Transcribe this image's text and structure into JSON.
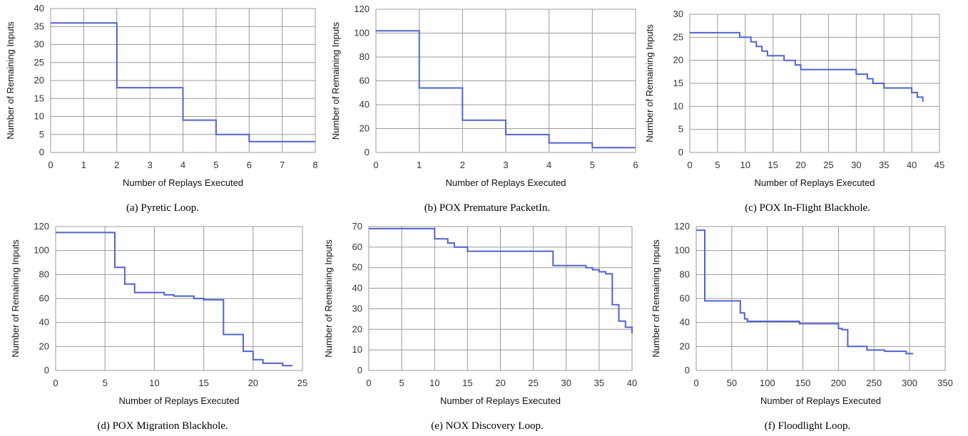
{
  "figure": {
    "series_color": "#5262d0",
    "grid_color": "#9a9a9a"
  },
  "chart_data": [
    {
      "type": "line",
      "step": true,
      "caption": "(a)  Pyretic Loop.",
      "xlabel": "Number of Replays Executed",
      "ylabel": "Number of Remaining Inputs",
      "xlim": [
        0,
        8
      ],
      "ylim": [
        0,
        40
      ],
      "xticks": [
        0,
        1,
        2,
        3,
        4,
        5,
        6,
        7,
        8
      ],
      "yticks": [
        0,
        5,
        10,
        15,
        20,
        25,
        30,
        35,
        40
      ],
      "grid": true,
      "x": [
        0,
        2,
        2,
        4,
        4,
        5,
        5,
        6,
        6,
        8
      ],
      "y": [
        36,
        36,
        18,
        18,
        9,
        9,
        5,
        5,
        3,
        3
      ]
    },
    {
      "type": "line",
      "step": true,
      "caption": "(b)  POX Premature PacketIn.",
      "xlabel": "Number of Replays Executed",
      "ylabel": "Number of Remaining Inputs",
      "xlim": [
        0,
        6
      ],
      "ylim": [
        0,
        120
      ],
      "xticks": [
        0,
        1,
        2,
        3,
        4,
        5,
        6
      ],
      "yticks": [
        0,
        20,
        40,
        60,
        80,
        100,
        120
      ],
      "grid": true,
      "x": [
        0,
        1,
        1,
        2,
        2,
        3,
        3,
        4,
        4,
        5,
        5,
        6
      ],
      "y": [
        102,
        102,
        54,
        54,
        27,
        27,
        15,
        15,
        8,
        8,
        4,
        4
      ]
    },
    {
      "type": "line",
      "step": true,
      "caption": "(c)  POX In-Flight Blackhole.",
      "xlabel": "Number of Replays Executed",
      "ylabel": "Number of Remaining Inputs",
      "xlim": [
        0,
        45
      ],
      "ylim": [
        0,
        30
      ],
      "xticks": [
        0,
        5,
        10,
        15,
        20,
        25,
        30,
        35,
        40,
        45
      ],
      "yticks": [
        0,
        5,
        10,
        15,
        20,
        25,
        30
      ],
      "grid": true,
      "x": [
        0,
        9,
        9,
        11,
        11,
        12,
        12,
        13,
        13,
        14,
        14,
        17,
        17,
        19,
        19,
        20,
        20,
        22,
        22,
        30,
        30,
        32,
        32,
        33,
        33,
        35,
        35,
        40,
        40,
        41,
        41,
        42,
        42
      ],
      "y": [
        26,
        26,
        25,
        25,
        24,
        24,
        23,
        23,
        22,
        22,
        21,
        21,
        20,
        20,
        19,
        19,
        18,
        18,
        18,
        18,
        17,
        17,
        16,
        16,
        15,
        15,
        14,
        14,
        13,
        13,
        12,
        12,
        11
      ]
    },
    {
      "type": "line",
      "step": true,
      "caption": "(d)  POX Migration Blackhole.",
      "xlabel": "Number of Replays Executed",
      "ylabel": "Number of Remaining Inputs",
      "xlim": [
        0,
        25
      ],
      "ylim": [
        0,
        120
      ],
      "xticks": [
        0,
        5,
        10,
        15,
        20,
        25
      ],
      "yticks": [
        0,
        20,
        40,
        60,
        80,
        100,
        120
      ],
      "grid": true,
      "x": [
        0,
        6,
        6,
        7,
        7,
        8,
        8,
        11,
        11,
        12,
        12,
        14,
        14,
        15,
        15,
        17,
        17,
        19,
        19,
        20,
        20,
        21,
        21,
        23,
        23,
        24
      ],
      "y": [
        115,
        115,
        86,
        86,
        72,
        72,
        65,
        65,
        63,
        63,
        62,
        62,
        60,
        60,
        59,
        59,
        30,
        30,
        16,
        16,
        9,
        9,
        6,
        6,
        4,
        4
      ]
    },
    {
      "type": "line",
      "step": true,
      "caption": "(e)  NOX Discovery Loop.",
      "xlabel": "Number of Replays Executed",
      "ylabel": "Number of Remaining Inputs",
      "xlim": [
        0,
        40
      ],
      "ylim": [
        0,
        70
      ],
      "xticks": [
        0,
        5,
        10,
        15,
        20,
        25,
        30,
        35,
        40
      ],
      "yticks": [
        0,
        10,
        20,
        30,
        40,
        50,
        60,
        70
      ],
      "grid": true,
      "x": [
        0,
        10,
        10,
        12,
        12,
        13,
        13,
        15,
        15,
        28,
        28,
        33,
        33,
        34,
        34,
        35,
        35,
        36,
        36,
        37,
        37,
        38,
        38,
        39,
        39,
        40,
        40
      ],
      "y": [
        69,
        69,
        64,
        64,
        62,
        62,
        60,
        60,
        58,
        58,
        51,
        51,
        50,
        50,
        49,
        49,
        48,
        48,
        47,
        47,
        32,
        32,
        24,
        24,
        21,
        21,
        18
      ]
    },
    {
      "type": "line",
      "step": true,
      "caption": "(f)  Floodlight Loop.",
      "xlabel": "Number of Replays Executed",
      "ylabel": "Number of Remaining Inputs",
      "xlim": [
        0,
        350
      ],
      "ylim": [
        0,
        120
      ],
      "xticks": [
        0,
        50,
        100,
        150,
        200,
        250,
        300,
        350
      ],
      "yticks": [
        0,
        20,
        40,
        60,
        80,
        100,
        120
      ],
      "grid": true,
      "x": [
        0,
        12,
        12,
        62,
        62,
        68,
        68,
        72,
        72,
        145,
        145,
        200,
        200,
        205,
        205,
        213,
        213,
        240,
        240,
        265,
        265,
        295,
        295,
        305
      ],
      "y": [
        117,
        117,
        58,
        58,
        48,
        48,
        43,
        43,
        41,
        41,
        39,
        39,
        35,
        35,
        34,
        34,
        20,
        20,
        17,
        17,
        16,
        16,
        14,
        14
      ]
    }
  ]
}
